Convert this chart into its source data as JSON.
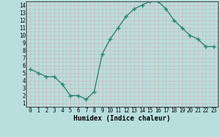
{
  "xlabel": "Humidex (Indice chaleur)",
  "x": [
    0,
    1,
    2,
    3,
    4,
    5,
    6,
    7,
    8,
    9,
    10,
    11,
    12,
    13,
    14,
    15,
    16,
    17,
    18,
    19,
    20,
    21,
    22,
    23
  ],
  "y": [
    5.5,
    5.0,
    4.5,
    4.5,
    3.5,
    2.0,
    2.0,
    1.5,
    2.5,
    7.5,
    9.5,
    11.0,
    12.5,
    13.5,
    14.0,
    14.5,
    14.5,
    13.5,
    12.0,
    11.0,
    10.0,
    9.5,
    8.5,
    8.5
  ],
  "line_color": "#2e7d6e",
  "bg_color": "#b8dede",
  "grid_major_color": "#9bcaca",
  "grid_minor_color": "#c8e8e8",
  "ylim_min": 0.5,
  "ylim_max": 14.5,
  "xlim_min": -0.5,
  "xlim_max": 23.5,
  "yticks": [
    1,
    2,
    3,
    4,
    5,
    6,
    7,
    8,
    9,
    10,
    11,
    12,
    13,
    14
  ],
  "xticks": [
    0,
    1,
    2,
    3,
    4,
    5,
    6,
    7,
    8,
    9,
    10,
    11,
    12,
    13,
    14,
    15,
    16,
    17,
    18,
    19,
    20,
    21,
    22,
    23
  ],
  "tick_fontsize": 5.5,
  "xlabel_fontsize": 7,
  "line_width": 1.0,
  "marker_size": 4
}
